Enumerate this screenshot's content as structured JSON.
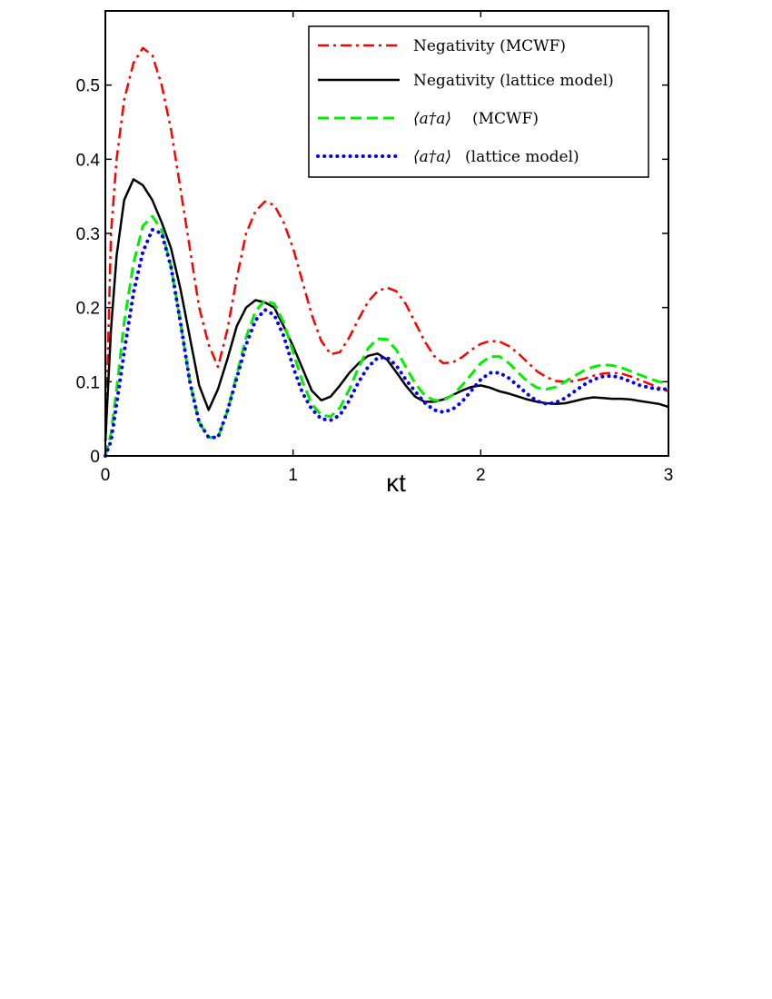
{
  "chart_data": {
    "type": "line",
    "title": "",
    "xlabel": "κt",
    "ylabel": "",
    "xlim": [
      0,
      3
    ],
    "ylim": [
      0,
      0.6
    ],
    "xticks": [
      0,
      1,
      2,
      3
    ],
    "yticks": [
      0,
      0.1,
      0.2,
      0.3,
      0.4,
      0.5
    ],
    "legend_placement": "top-right",
    "grid": false,
    "series": [
      {
        "name": "Negativity (MCWF)",
        "color": "#ff0000",
        "style": "dashdot",
        "x": [
          0,
          0.03,
          0.06,
          0.1,
          0.15,
          0.2,
          0.25,
          0.3,
          0.35,
          0.4,
          0.45,
          0.5,
          0.55,
          0.6,
          0.65,
          0.7,
          0.75,
          0.8,
          0.85,
          0.9,
          0.95,
          1.0,
          1.05,
          1.1,
          1.15,
          1.2,
          1.25,
          1.3,
          1.35,
          1.4,
          1.45,
          1.5,
          1.55,
          1.6,
          1.65,
          1.7,
          1.75,
          1.8,
          1.85,
          1.9,
          1.95,
          2.0,
          2.05,
          2.1,
          2.15,
          2.2,
          2.25,
          2.3,
          2.35,
          2.4,
          2.45,
          2.5,
          2.55,
          2.6,
          2.65,
          2.7,
          2.75,
          2.8,
          2.85,
          2.9,
          2.95,
          3.0
        ],
        "y": [
          0.0,
          0.3,
          0.4,
          0.48,
          0.53,
          0.55,
          0.54,
          0.5,
          0.44,
          0.36,
          0.28,
          0.2,
          0.15,
          0.12,
          0.17,
          0.24,
          0.3,
          0.33,
          0.343,
          0.338,
          0.315,
          0.28,
          0.235,
          0.19,
          0.155,
          0.137,
          0.14,
          0.16,
          0.185,
          0.208,
          0.222,
          0.227,
          0.222,
          0.205,
          0.18,
          0.155,
          0.135,
          0.125,
          0.126,
          0.133,
          0.143,
          0.151,
          0.155,
          0.154,
          0.148,
          0.138,
          0.126,
          0.114,
          0.106,
          0.101,
          0.1,
          0.101,
          0.104,
          0.108,
          0.111,
          0.112,
          0.111,
          0.107,
          0.102,
          0.097,
          0.092,
          0.087
        ]
      },
      {
        "name": "Negativity (lattice model)",
        "color": "#000000",
        "style": "solid",
        "x": [
          0,
          0.03,
          0.06,
          0.1,
          0.15,
          0.2,
          0.25,
          0.3,
          0.35,
          0.4,
          0.45,
          0.5,
          0.55,
          0.6,
          0.65,
          0.7,
          0.75,
          0.8,
          0.85,
          0.9,
          0.95,
          1.0,
          1.05,
          1.1,
          1.15,
          1.2,
          1.25,
          1.3,
          1.35,
          1.4,
          1.45,
          1.5,
          1.55,
          1.6,
          1.65,
          1.7,
          1.75,
          1.8,
          1.85,
          1.9,
          1.95,
          2.0,
          2.05,
          2.1,
          2.15,
          2.2,
          2.25,
          2.3,
          2.35,
          2.4,
          2.45,
          2.5,
          2.55,
          2.6,
          2.65,
          2.7,
          2.75,
          2.8,
          2.85,
          2.9,
          2.95,
          3.0
        ],
        "y": [
          0.02,
          0.17,
          0.27,
          0.345,
          0.373,
          0.365,
          0.345,
          0.315,
          0.28,
          0.225,
          0.16,
          0.095,
          0.062,
          0.09,
          0.13,
          0.175,
          0.2,
          0.21,
          0.207,
          0.2,
          0.175,
          0.148,
          0.118,
          0.088,
          0.075,
          0.08,
          0.095,
          0.112,
          0.125,
          0.135,
          0.138,
          0.13,
          0.113,
          0.095,
          0.08,
          0.073,
          0.073,
          0.076,
          0.082,
          0.088,
          0.093,
          0.095,
          0.092,
          0.087,
          0.084,
          0.08,
          0.076,
          0.073,
          0.071,
          0.07,
          0.071,
          0.074,
          0.077,
          0.079,
          0.078,
          0.077,
          0.077,
          0.076,
          0.074,
          0.072,
          0.07,
          0.066
        ]
      },
      {
        "name": "⟨a†a⟩ (MCWF)",
        "color": "#00ee00",
        "style": "dashed",
        "x": [
          0,
          0.03,
          0.06,
          0.1,
          0.15,
          0.2,
          0.25,
          0.3,
          0.35,
          0.4,
          0.45,
          0.5,
          0.55,
          0.6,
          0.65,
          0.7,
          0.75,
          0.8,
          0.85,
          0.9,
          0.95,
          1.0,
          1.05,
          1.1,
          1.15,
          1.2,
          1.25,
          1.3,
          1.35,
          1.4,
          1.45,
          1.5,
          1.55,
          1.6,
          1.65,
          1.7,
          1.75,
          1.8,
          1.85,
          1.9,
          1.95,
          2.0,
          2.05,
          2.1,
          2.15,
          2.2,
          2.25,
          2.3,
          2.35,
          2.4,
          2.45,
          2.5,
          2.55,
          2.6,
          2.65,
          2.7,
          2.75,
          2.8,
          2.85,
          2.9,
          2.95,
          3.0
        ],
        "y": [
          0.0,
          0.03,
          0.09,
          0.18,
          0.26,
          0.31,
          0.323,
          0.305,
          0.255,
          0.18,
          0.1,
          0.045,
          0.025,
          0.025,
          0.06,
          0.11,
          0.16,
          0.195,
          0.21,
          0.205,
          0.18,
          0.14,
          0.1,
          0.07,
          0.055,
          0.053,
          0.065,
          0.09,
          0.12,
          0.145,
          0.158,
          0.157,
          0.143,
          0.12,
          0.098,
          0.082,
          0.075,
          0.075,
          0.082,
          0.095,
          0.11,
          0.125,
          0.134,
          0.134,
          0.125,
          0.112,
          0.1,
          0.092,
          0.09,
          0.093,
          0.1,
          0.108,
          0.115,
          0.12,
          0.123,
          0.122,
          0.119,
          0.114,
          0.109,
          0.104,
          0.1,
          0.097
        ]
      },
      {
        "name": "⟨a†a⟩ (lattice model)",
        "color": "#0000ff",
        "style": "dotted",
        "x": [
          0,
          0.03,
          0.06,
          0.1,
          0.15,
          0.2,
          0.25,
          0.3,
          0.35,
          0.4,
          0.45,
          0.5,
          0.55,
          0.6,
          0.65,
          0.7,
          0.75,
          0.8,
          0.85,
          0.9,
          0.95,
          1.0,
          1.05,
          1.1,
          1.15,
          1.2,
          1.25,
          1.3,
          1.35,
          1.4,
          1.45,
          1.5,
          1.55,
          1.6,
          1.65,
          1.7,
          1.75,
          1.8,
          1.85,
          1.9,
          1.95,
          2.0,
          2.05,
          2.1,
          2.15,
          2.2,
          2.25,
          2.3,
          2.35,
          2.4,
          2.45,
          2.5,
          2.55,
          2.6,
          2.65,
          2.7,
          2.75,
          2.8,
          2.85,
          2.9,
          2.95,
          3.0
        ],
        "y": [
          0.0,
          0.02,
          0.07,
          0.14,
          0.22,
          0.275,
          0.305,
          0.3,
          0.255,
          0.18,
          0.1,
          0.045,
          0.025,
          0.025,
          0.06,
          0.105,
          0.15,
          0.183,
          0.197,
          0.19,
          0.162,
          0.12,
          0.085,
          0.063,
          0.05,
          0.048,
          0.055,
          0.075,
          0.1,
          0.12,
          0.132,
          0.133,
          0.122,
          0.103,
          0.087,
          0.072,
          0.062,
          0.059,
          0.063,
          0.073,
          0.088,
          0.103,
          0.112,
          0.112,
          0.105,
          0.094,
          0.083,
          0.074,
          0.07,
          0.072,
          0.078,
          0.087,
          0.096,
          0.103,
          0.107,
          0.108,
          0.105,
          0.1,
          0.095,
          0.092,
          0.09,
          0.09
        ]
      }
    ]
  },
  "legend": {
    "entries": [
      {
        "text": "Negativity (MCWF)"
      },
      {
        "text": "Negativity (lattice model)"
      },
      {
        "math": "⟨a†a⟩",
        "text": "(MCWF)"
      },
      {
        "math": "⟨a†a⟩",
        "text": "(lattice model)"
      }
    ]
  }
}
